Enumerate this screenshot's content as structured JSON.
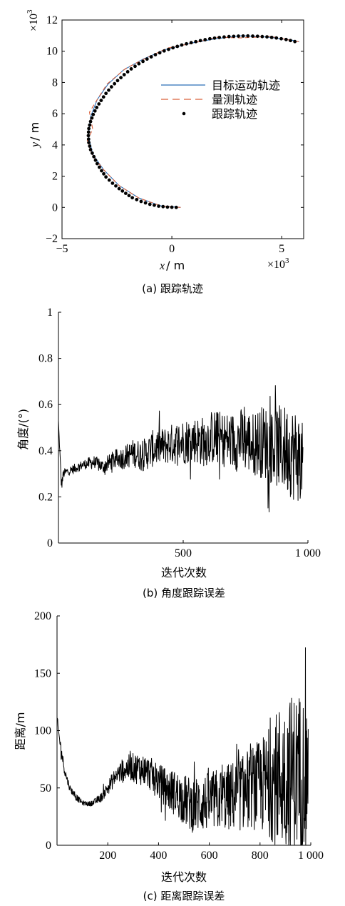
{
  "chart_data": [
    {
      "id": "a",
      "type": "line",
      "caption": "(a) 跟踪轨迹",
      "xlabel_italic": "x",
      "xlabel_rest": "/ m",
      "ylabel_italic": "y",
      "ylabel_rest": "/ m",
      "x_multiplier": "×10",
      "x_multiplier_exp": "3",
      "y_multiplier": "×10",
      "y_multiplier_exp": "3",
      "xlim": [
        -5,
        6
      ],
      "ylim": [
        -2,
        12
      ],
      "xticks": [
        -5,
        0,
        5
      ],
      "yticks": [
        -2,
        0,
        2,
        4,
        6,
        8,
        10,
        12
      ],
      "legend_position": "upper-right",
      "series": [
        {
          "name": "目标运动轨迹",
          "color": "#2b6fb8",
          "style": "solid",
          "x": [
            0.4,
            -0.5,
            -1.5,
            -2.4,
            -3.1,
            -3.6,
            -3.8,
            -3.7,
            -3.4,
            -2.9,
            -2.2,
            -1.3,
            -0.3,
            0.8,
            2.0,
            3.2,
            4.4,
            5.5,
            5.8
          ],
          "y": [
            0.0,
            0.1,
            0.6,
            1.4,
            2.4,
            3.4,
            4.6,
            5.8,
            6.9,
            7.9,
            8.8,
            9.5,
            10.1,
            10.5,
            10.8,
            11.0,
            10.9,
            10.7,
            10.6
          ]
        },
        {
          "name": "量测轨迹",
          "color": "#d9603b",
          "style": "dashed",
          "x": [
            0.4,
            -0.5,
            -1.5,
            -2.4,
            -3.1,
            -3.6,
            -3.85,
            -3.6,
            -3.75,
            -3.4,
            -2.95,
            -2.1,
            -1.4,
            -0.2,
            0.9,
            2.1,
            3.1,
            4.5,
            5.4,
            5.8
          ],
          "y": [
            0.0,
            0.1,
            0.6,
            1.4,
            2.4,
            3.3,
            4.3,
            5.0,
            6.1,
            6.9,
            7.9,
            8.9,
            9.4,
            10.2,
            10.5,
            10.9,
            10.85,
            10.95,
            10.7,
            10.6
          ]
        },
        {
          "name": "跟踪轨迹",
          "color": "#000000",
          "style": "dots",
          "x": [
            0.2,
            -0.2,
            -0.6,
            -1.0,
            -1.4,
            -1.8,
            -2.1,
            -2.4,
            -2.7,
            -3.0,
            -3.2,
            -3.4,
            -3.55,
            -3.7,
            -3.78,
            -3.8,
            -3.78,
            -3.7,
            -3.58,
            -3.42,
            -3.22,
            -3.0,
            -2.75,
            -2.47,
            -2.17,
            -1.85,
            -1.5,
            -1.13,
            -0.75,
            -0.35,
            0.05,
            0.45,
            0.88,
            1.3,
            1.73,
            2.16,
            2.6,
            3.03,
            3.46,
            3.9,
            4.33,
            4.76,
            5.2,
            5.6
          ],
          "y": [
            0.0,
            0.02,
            0.08,
            0.2,
            0.38,
            0.62,
            0.9,
            1.2,
            1.55,
            1.95,
            2.35,
            2.8,
            3.25,
            3.7,
            4.15,
            4.6,
            5.05,
            5.5,
            5.95,
            6.4,
            6.85,
            7.3,
            7.72,
            8.12,
            8.5,
            8.87,
            9.2,
            9.5,
            9.78,
            10.02,
            10.22,
            10.4,
            10.55,
            10.68,
            10.8,
            10.88,
            10.94,
            10.97,
            10.98,
            10.96,
            10.92,
            10.85,
            10.75,
            10.62
          ]
        }
      ]
    },
    {
      "id": "b",
      "type": "line",
      "caption": "(b) 角度跟踪误差",
      "xlabel": "迭代次数",
      "ylabel": "角度/(°)",
      "xlim": [
        0,
        1000
      ],
      "ylim": [
        0,
        1
      ],
      "xticks": [
        500,
        1000
      ],
      "xtick_labels": [
        "500",
        "1 000"
      ],
      "yticks": [
        0,
        0.2,
        0.4,
        0.6,
        0.8,
        1
      ],
      "ytick_labels": [
        "0",
        "0.2",
        "0.4",
        "0.6",
        "0.8",
        "1"
      ],
      "series": [
        {
          "name": "",
          "color": "#000000",
          "x": [
            0,
            2,
            6,
            12,
            20,
            35,
            60,
            100,
            140,
            180,
            220,
            260,
            300,
            340,
            380,
            420,
            460,
            500,
            540,
            580,
            620,
            660,
            700,
            740,
            780,
            820,
            860,
            900,
            930,
            950,
            970,
            980
          ],
          "y": [
            0.53,
            0.48,
            0.38,
            0.25,
            0.3,
            0.31,
            0.32,
            0.34,
            0.35,
            0.33,
            0.36,
            0.37,
            0.39,
            0.38,
            0.41,
            0.42,
            0.43,
            0.44,
            0.45,
            0.44,
            0.46,
            0.45,
            0.44,
            0.45,
            0.43,
            0.44,
            0.42,
            0.41,
            0.4,
            0.38,
            0.37,
            0.36
          ],
          "noise_envelope": [
            0.0,
            0.0,
            0.02,
            0.03,
            0.02,
            0.02,
            0.02,
            0.02,
            0.03,
            0.03,
            0.04,
            0.05,
            0.06,
            0.07,
            0.08,
            0.08,
            0.09,
            0.1,
            0.1,
            0.11,
            0.12,
            0.12,
            0.13,
            0.14,
            0.14,
            0.16,
            0.17,
            0.19,
            0.2,
            0.21,
            0.19,
            0.15
          ]
        }
      ]
    },
    {
      "id": "c",
      "type": "line",
      "caption": "(c) 距离跟踪误差",
      "xlabel": "迭代次数",
      "ylabel": "距离/m",
      "xlim": [
        0,
        1000
      ],
      "ylim": [
        0,
        200
      ],
      "xticks": [
        200,
        400,
        600,
        800,
        1000
      ],
      "xtick_labels": [
        "200",
        "400",
        "600",
        "800",
        "1 000"
      ],
      "yticks": [
        0,
        50,
        100,
        150,
        200
      ],
      "ytick_labels": [
        "0",
        "50",
        "100",
        "150",
        "200"
      ],
      "series": [
        {
          "name": "",
          "color": "#000000",
          "x": [
            0,
            5,
            15,
            30,
            50,
            75,
            100,
            125,
            150,
            175,
            200,
            230,
            260,
            290,
            320,
            350,
            380,
            410,
            440,
            470,
            500,
            530,
            560,
            600,
            640,
            680,
            720,
            760,
            800,
            840,
            880,
            920,
            960,
            990
          ],
          "y": [
            110,
            100,
            85,
            65,
            50,
            42,
            37,
            36,
            38,
            42,
            50,
            60,
            66,
            68,
            67,
            65,
            60,
            54,
            48,
            45,
            40,
            35,
            36,
            38,
            40,
            42,
            45,
            50,
            52,
            55,
            60,
            62,
            64,
            65
          ],
          "noise_envelope": [
            5,
            5,
            5,
            4,
            3,
            3,
            2,
            2,
            3,
            4,
            6,
            8,
            10,
            12,
            14,
            14,
            15,
            16,
            18,
            20,
            22,
            24,
            25,
            26,
            28,
            30,
            33,
            36,
            40,
            50,
            65,
            70,
            72,
            60
          ]
        }
      ]
    }
  ]
}
